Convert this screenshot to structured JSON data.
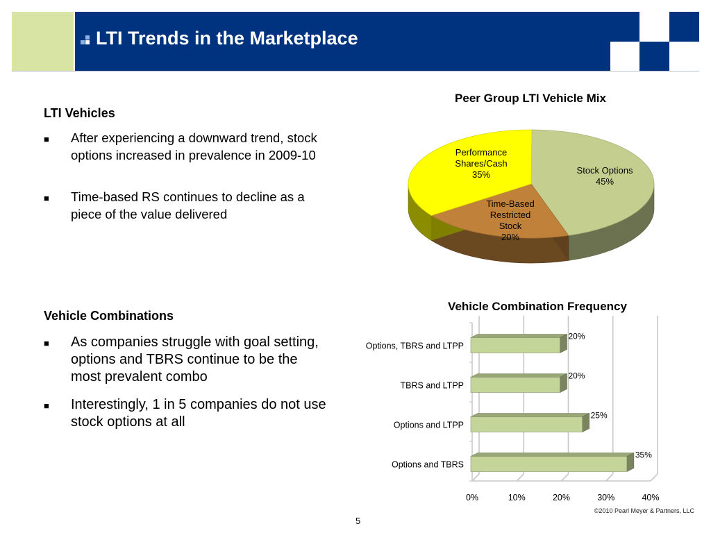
{
  "header": {
    "title": "LTI Trends in the Marketplace"
  },
  "left": {
    "section1": {
      "heading": "LTI Vehicles",
      "bullets": [
        "After experiencing a downward trend, stock options increased in prevalence in 2009-10",
        "Time-based RS continues to decline as a piece of the value delivered"
      ]
    },
    "section2": {
      "heading": "Vehicle Combinations",
      "bullets": [
        "As companies struggle with goal setting, options and TBRS continue to be the most prevalent combo",
        "Interestingly, 1 in 5 companies do not use stock options at all"
      ]
    }
  },
  "chart_data": [
    {
      "type": "pie",
      "title": "Peer Group LTI Vehicle Mix",
      "slices": [
        {
          "label": "Stock Options",
          "value": 45,
          "value_label": "45%",
          "color": "#c4cf8f"
        },
        {
          "label": "Time-Based Restricted Stock",
          "value": 20,
          "value_label": "20%",
          "color": "#c0823b"
        },
        {
          "label": "Performance Shares/Cash",
          "value": 35,
          "value_label": "35%",
          "color": "#ffff00"
        }
      ]
    },
    {
      "type": "bar",
      "orientation": "horizontal",
      "title": "Vehicle Combination Frequency",
      "categories": [
        "Options, TBRS and LTPP",
        "TBRS and LTPP",
        "Options and LTPP",
        "Options and TBRS"
      ],
      "values": [
        20,
        20,
        25,
        35
      ],
      "value_labels": [
        "20%",
        "20%",
        "25%",
        "35%"
      ],
      "xlim": [
        0,
        40
      ],
      "xticks": [
        "0%",
        "10%",
        "20%",
        "30%",
        "40%"
      ],
      "bar_color": "#c4d59a",
      "grid": true
    }
  ],
  "footer": {
    "copyright": "©2010 Pearl Meyer & Partners, LLC",
    "page": "5"
  }
}
